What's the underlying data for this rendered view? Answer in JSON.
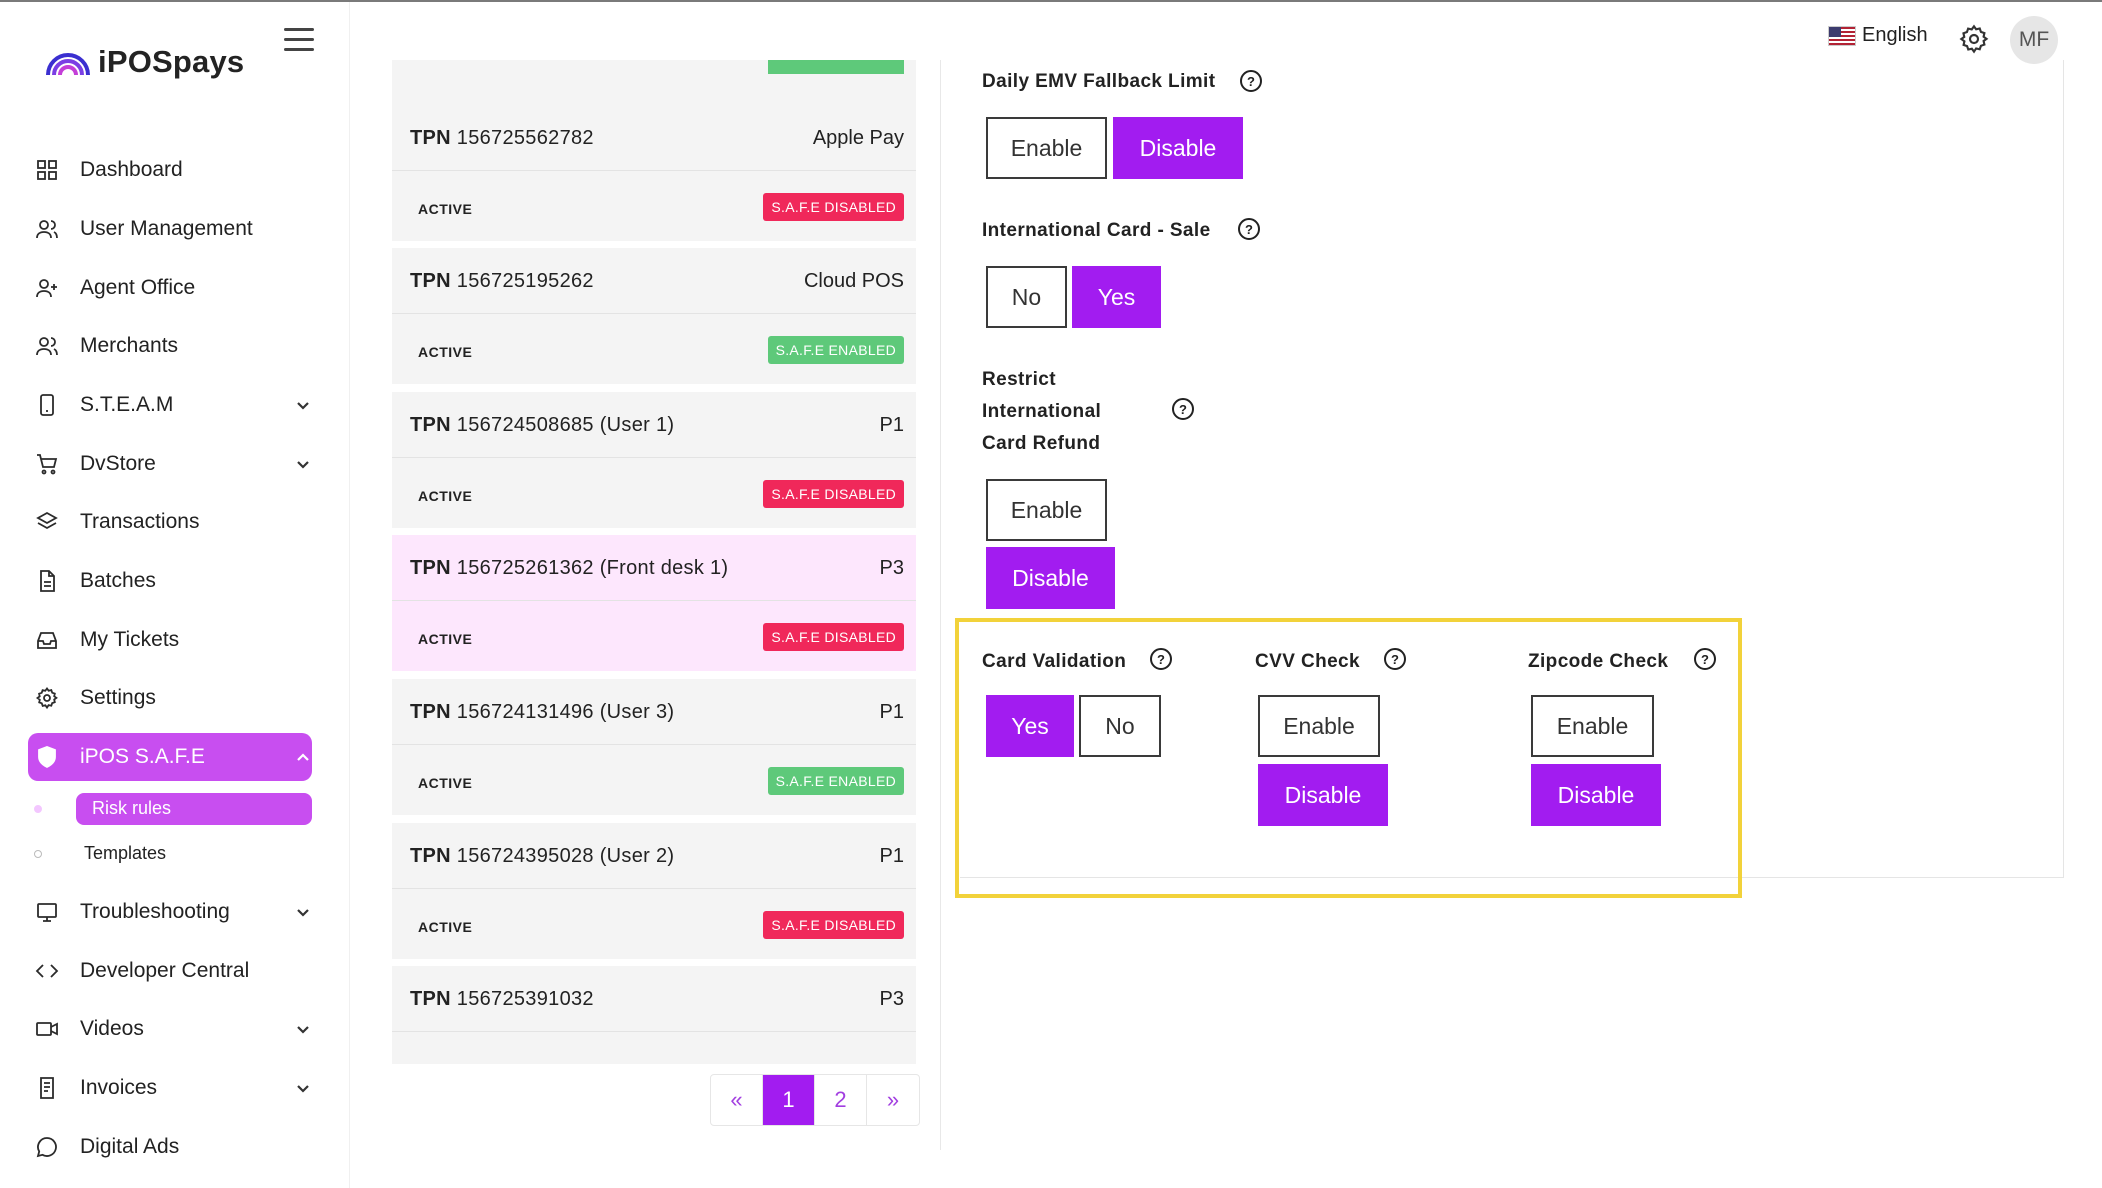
{
  "app": {
    "logo_text": "iPOSpays"
  },
  "header": {
    "language": "English",
    "avatar_initials": "MF"
  },
  "sidebar": {
    "items": [
      {
        "label": "Dashboard",
        "icon": "grid-icon",
        "has_chevron": false
      },
      {
        "label": "User Management",
        "icon": "users-icon",
        "has_chevron": false
      },
      {
        "label": "Agent Office",
        "icon": "user-plus-icon",
        "has_chevron": false
      },
      {
        "label": "Merchants",
        "icon": "users-icon",
        "has_chevron": false
      },
      {
        "label": "S.T.E.A.M",
        "icon": "phone-icon",
        "has_chevron": true
      },
      {
        "label": "DvStore",
        "icon": "cart-icon",
        "has_chevron": true
      },
      {
        "label": "Transactions",
        "icon": "layers-icon",
        "has_chevron": false
      },
      {
        "label": "Batches",
        "icon": "file-icon",
        "has_chevron": false
      },
      {
        "label": "My Tickets",
        "icon": "inbox-icon",
        "has_chevron": false
      },
      {
        "label": "Settings",
        "icon": "gear-icon",
        "has_chevron": false
      },
      {
        "label": "iPOS S.A.F.E",
        "icon": "shield-icon",
        "has_chevron": true,
        "active": true
      },
      {
        "label": "Troubleshooting",
        "icon": "monitor-icon",
        "has_chevron": true
      },
      {
        "label": "Developer Central",
        "icon": "code-icon",
        "has_chevron": false
      },
      {
        "label": "Videos",
        "icon": "video-icon",
        "has_chevron": true
      },
      {
        "label": "Invoices",
        "icon": "invoice-icon",
        "has_chevron": true
      },
      {
        "label": "Digital Ads",
        "icon": "chat-icon",
        "has_chevron": false
      }
    ],
    "subitems": [
      {
        "label": "Risk rules",
        "active": true
      },
      {
        "label": "Templates",
        "active": false
      }
    ]
  },
  "tpn_list": {
    "prefix": "TPN",
    "cards": [
      {
        "id": "156725562782",
        "type": "Apple Pay",
        "status": "ACTIVE",
        "safe": "S.A.F.E DISABLED",
        "safe_enabled": false,
        "highlight": false
      },
      {
        "id": "156725195262",
        "type": "Cloud POS",
        "status": "ACTIVE",
        "safe": "S.A.F.E ENABLED",
        "safe_enabled": true,
        "highlight": false
      },
      {
        "id": "156724508685 (User 1)",
        "type": "P1",
        "status": "ACTIVE",
        "safe": "S.A.F.E DISABLED",
        "safe_enabled": false,
        "highlight": false
      },
      {
        "id": "156725261362 (Front desk 1)",
        "type": "P3",
        "status": "ACTIVE",
        "safe": "S.A.F.E DISABLED",
        "safe_enabled": false,
        "highlight": true
      },
      {
        "id": "156724131496 (User 3)",
        "type": "P1",
        "status": "ACTIVE",
        "safe": "S.A.F.E ENABLED",
        "safe_enabled": true,
        "highlight": false
      },
      {
        "id": "156724395028 (User 2)",
        "type": "P1",
        "status": "ACTIVE",
        "safe": "S.A.F.E DISABLED",
        "safe_enabled": false,
        "highlight": false
      },
      {
        "id": "156725391032",
        "type": "P3",
        "status": "",
        "safe": "",
        "safe_enabled": false,
        "highlight": false
      }
    ]
  },
  "pagination": {
    "prev": "«",
    "pages": [
      "1",
      "2"
    ],
    "current": "1",
    "next": "»"
  },
  "settings": {
    "emv_fallback": {
      "label": "Daily EMV Fallback Limit",
      "options": [
        "Enable",
        "Disable"
      ],
      "selected": "Disable"
    },
    "intl_sale": {
      "label": "International Card - Sale",
      "options": [
        "No",
        "Yes"
      ],
      "selected": "Yes"
    },
    "intl_refund": {
      "label_lines": [
        "Restrict",
        "International",
        "Card Refund"
      ],
      "options": [
        "Enable",
        "Disable"
      ],
      "selected": "Disable"
    },
    "card_validation": {
      "label": "Card Validation",
      "options": [
        "Yes",
        "No"
      ],
      "selected": "Yes"
    },
    "cvv_check": {
      "label": "CVV Check",
      "options": [
        "Enable",
        "Disable"
      ],
      "selected": "Disable"
    },
    "zipcode_check": {
      "label": "Zipcode Check",
      "options": [
        "Enable",
        "Disable"
      ],
      "selected": "Disable"
    }
  },
  "colors": {
    "accent": "#a21cf0",
    "sidebar_active": "#c84ef0",
    "badge_disabled": "#f0285a",
    "badge_enabled": "#5ec97a",
    "highlight_box": "#f2d23a"
  }
}
